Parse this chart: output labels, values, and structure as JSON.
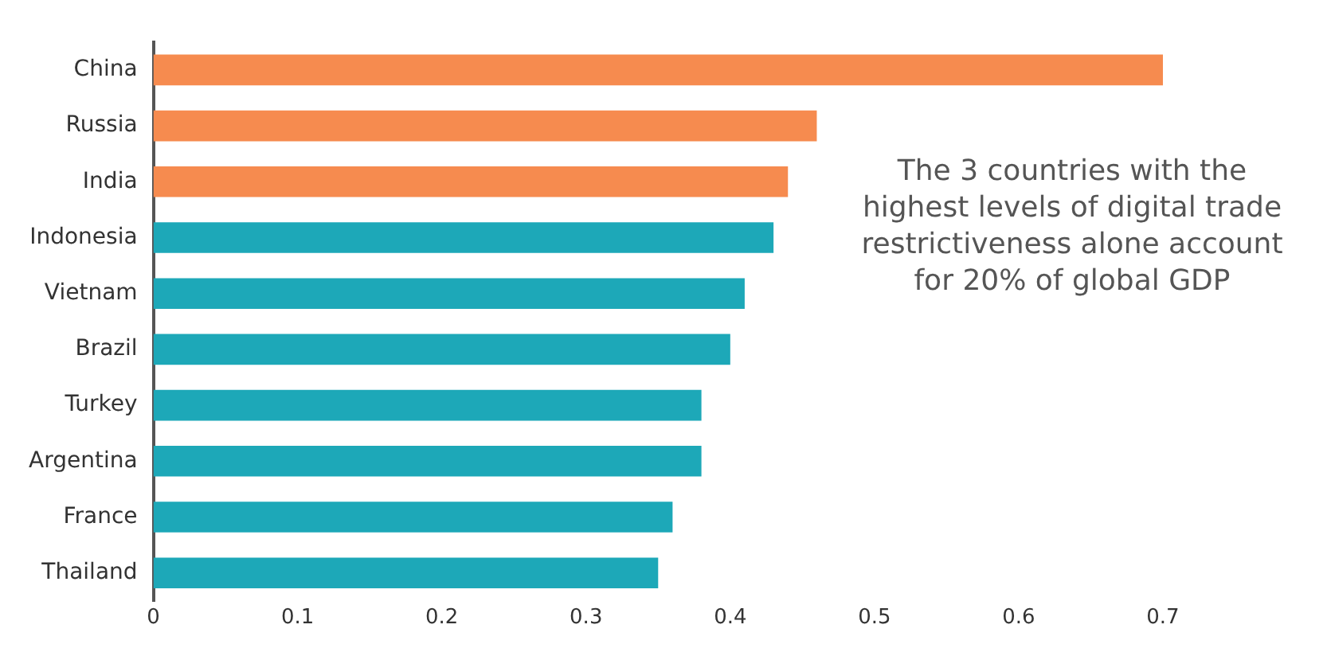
{
  "chart_data": {
    "type": "bar",
    "orientation": "horizontal",
    "categories": [
      "China",
      "Russia",
      "India",
      "Indonesia",
      "Vietnam",
      "Brazil",
      "Turkey",
      "Argentina",
      "France",
      "Thailand"
    ],
    "values": [
      0.7,
      0.46,
      0.44,
      0.43,
      0.41,
      0.4,
      0.38,
      0.38,
      0.36,
      0.35
    ],
    "colors": [
      "#f68b4f",
      "#f68b4f",
      "#f68b4f",
      "#1da8b8",
      "#1da8b8",
      "#1da8b8",
      "#1da8b8",
      "#1da8b8",
      "#1da8b8",
      "#1da8b8"
    ],
    "xlim": [
      0,
      0.7
    ],
    "xticks": [
      0,
      0.1,
      0.2,
      0.3,
      0.4,
      0.5,
      0.6,
      0.7
    ],
    "grid": false,
    "legend": false,
    "annotations": [
      "The 3 countries with the highest levels of digital trade restrictiveness alone account for 20% of global GDP"
    ]
  }
}
